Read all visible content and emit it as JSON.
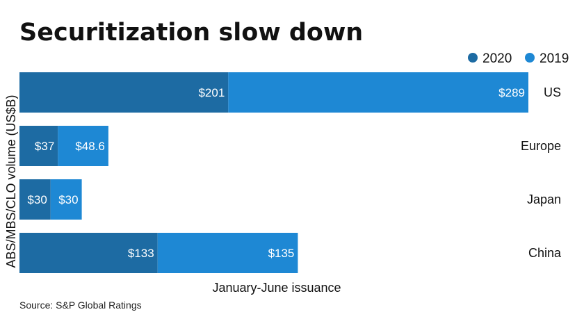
{
  "title": "Securitization slow down",
  "source": "Source: S&P Global Ratings",
  "colors": {
    "2020": "#1d6ba3",
    "2019": "#1e88d4"
  },
  "chart_data": {
    "type": "bar",
    "orientation": "horizontal",
    "stacked": true,
    "title": "Securitization slow down",
    "xlabel": "January-June issuance",
    "ylabel": "ABS/MBS/CLO volume (US$B)",
    "categories": [
      "US",
      "Europe",
      "Japan",
      "China"
    ],
    "series": [
      {
        "name": "2020",
        "values": [
          201,
          37,
          30,
          133
        ],
        "labels": [
          "$201",
          "$37",
          "$30",
          "$133"
        ]
      },
      {
        "name": "2019",
        "values": [
          289,
          48.6,
          30,
          135
        ],
        "labels": [
          "$289",
          "$48.6",
          "$30",
          "$135"
        ]
      }
    ],
    "legend": "top-right",
    "grid": false
  }
}
